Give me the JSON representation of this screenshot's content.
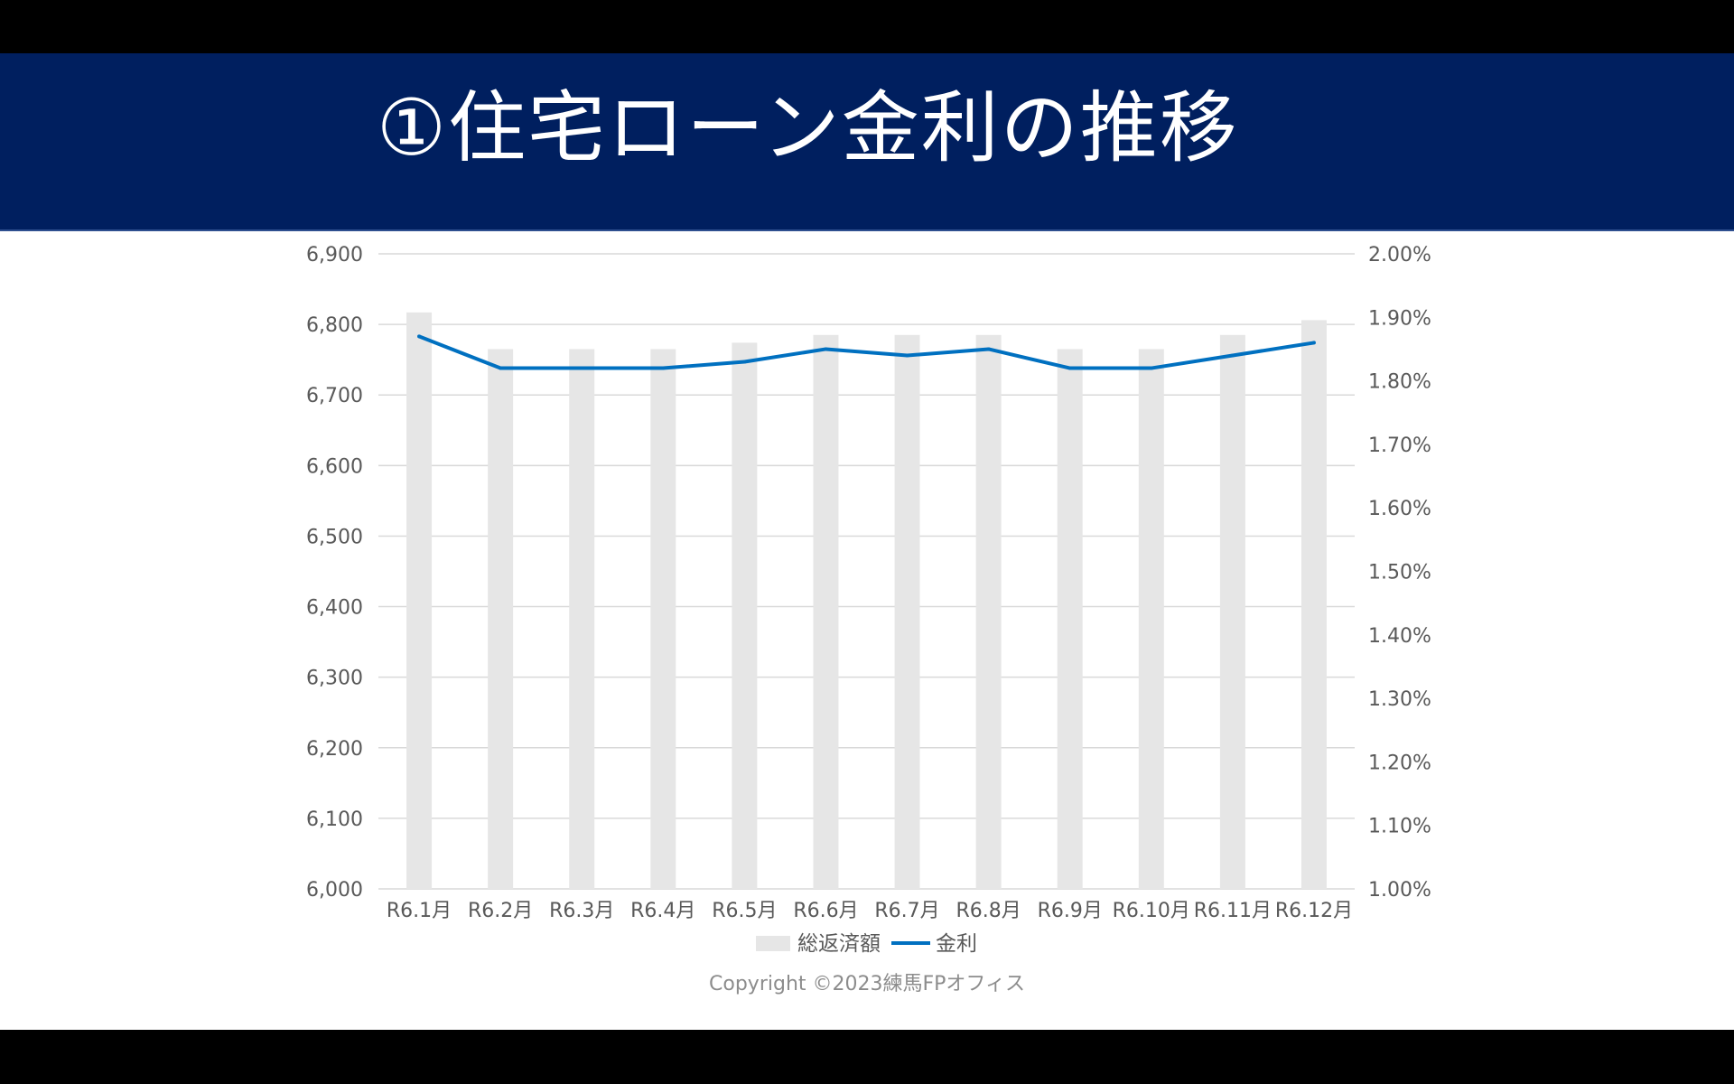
{
  "title": "①住宅ローン金利の推移",
  "copyright": "Copyright ©2023練馬FPオフィス",
  "colors": {
    "header_bg": "#001f5f",
    "bar": "#e6e6e6",
    "line": "#0070c0",
    "grid": "#d9d9d9",
    "text": "#595959"
  },
  "chart_data": {
    "type": "bar",
    "categories": [
      "R6.1月",
      "R6.2月",
      "R6.3月",
      "R6.4月",
      "R6.5月",
      "R6.6月",
      "R6.7月",
      "R6.8月",
      "R6.9月",
      "R6.10月",
      "R6.11月",
      "R6.12月"
    ],
    "series": [
      {
        "name": "総返済額",
        "type": "bar",
        "axis": "left",
        "values": [
          6817,
          6765,
          6765,
          6765,
          6774,
          6785,
          6785,
          6785,
          6765,
          6765,
          6785,
          6806
        ]
      },
      {
        "name": "金利",
        "type": "line",
        "axis": "right",
        "values": [
          1.87,
          1.82,
          1.82,
          1.82,
          1.83,
          1.85,
          1.84,
          1.85,
          1.82,
          1.82,
          1.84,
          1.86
        ]
      }
    ],
    "y_left": {
      "lim": [
        6000,
        6900
      ],
      "ticks": [
        "6,000",
        "6,100",
        "6,200",
        "6,300",
        "6,400",
        "6,500",
        "6,600",
        "6,700",
        "6,800",
        "6,900"
      ]
    },
    "y_right": {
      "lim": [
        1.0,
        2.0
      ],
      "ticks": [
        "1.00%",
        "1.10%",
        "1.20%",
        "1.30%",
        "1.40%",
        "1.50%",
        "1.60%",
        "1.70%",
        "1.80%",
        "1.90%",
        "2.00%"
      ]
    },
    "grid": true,
    "legend_position": "bottom"
  }
}
